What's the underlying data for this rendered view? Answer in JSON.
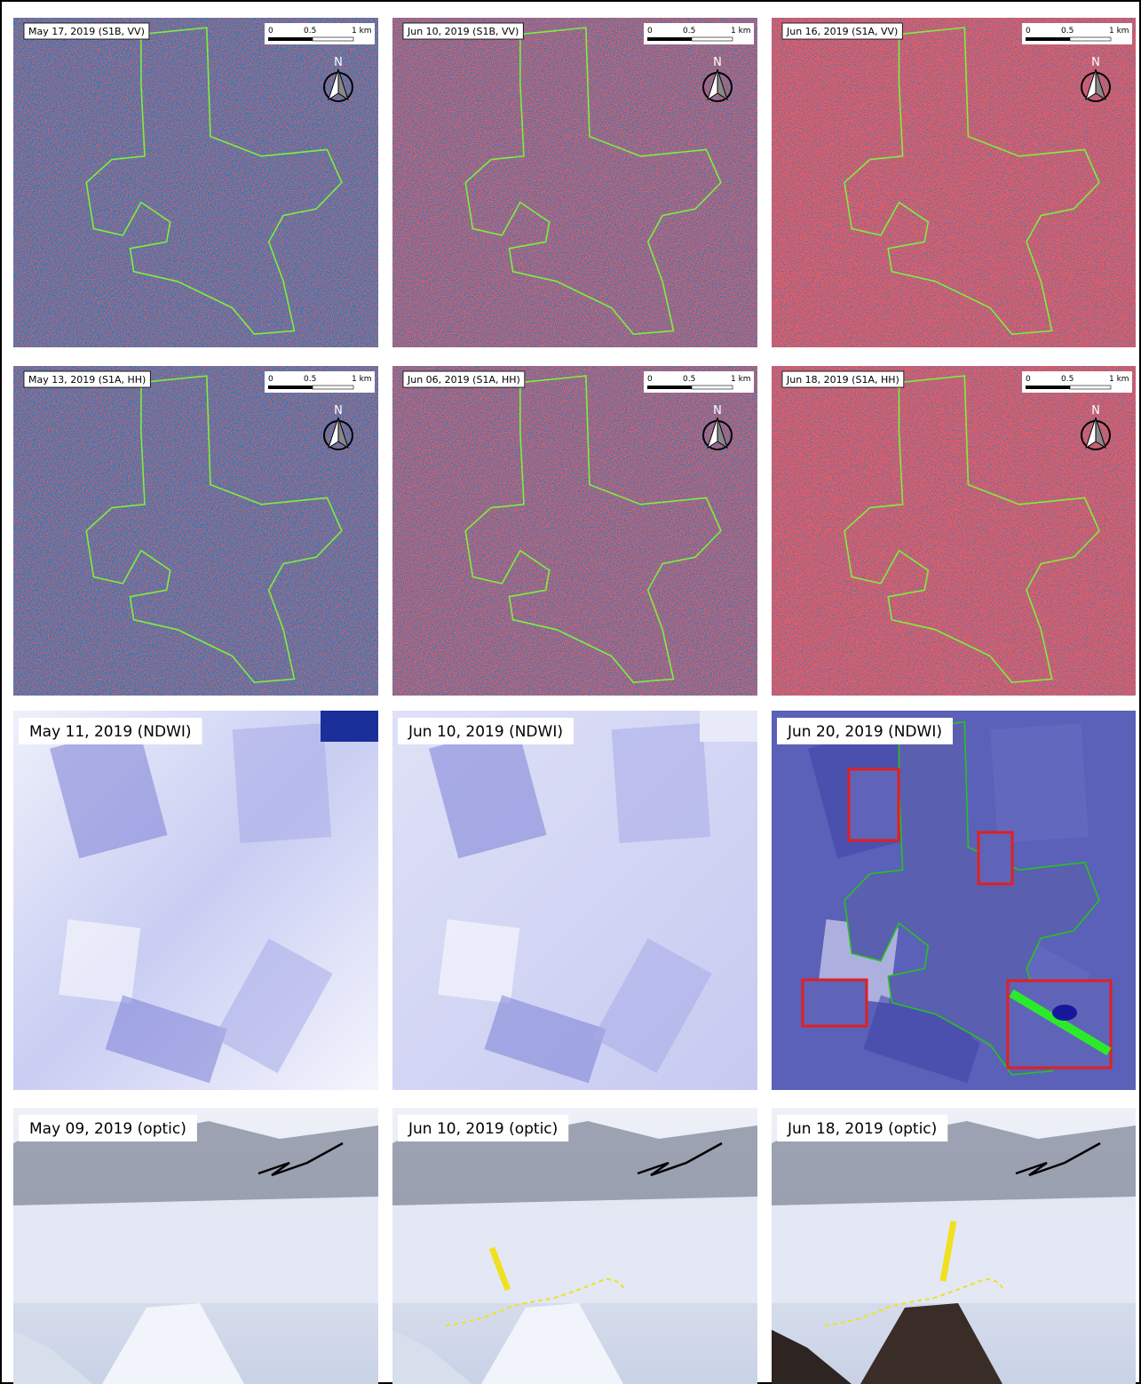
{
  "panels": [
    {
      "label": "May 17, 2019 (S1B, VV)"
    },
    {
      "label": "Jun 10, 2019 (S1B, VV)"
    },
    {
      "label": "Jun 16, 2019 (S1A, VV)"
    },
    {
      "label": "May 13, 2019 (S1A, HH)"
    },
    {
      "label": "Jun 06, 2019 (S1A, HH)"
    },
    {
      "label": "Jun 18, 2019 (S1A, HH)"
    },
    {
      "label": "May 11, 2019 (NDWI)"
    },
    {
      "label": "Jun 10, 2019 (NDWI)"
    },
    {
      "label": "Jun 20, 2019 (NDWI)"
    },
    {
      "label": "May 09, 2019 (optic)"
    },
    {
      "label": "Jun 10, 2019 (optic)"
    },
    {
      "label": "Jun 18, 2019 (optic)"
    }
  ],
  "scale_bar": {
    "ticks": [
      "0",
      "0.5",
      "1 km"
    ]
  },
  "north": "N"
}
